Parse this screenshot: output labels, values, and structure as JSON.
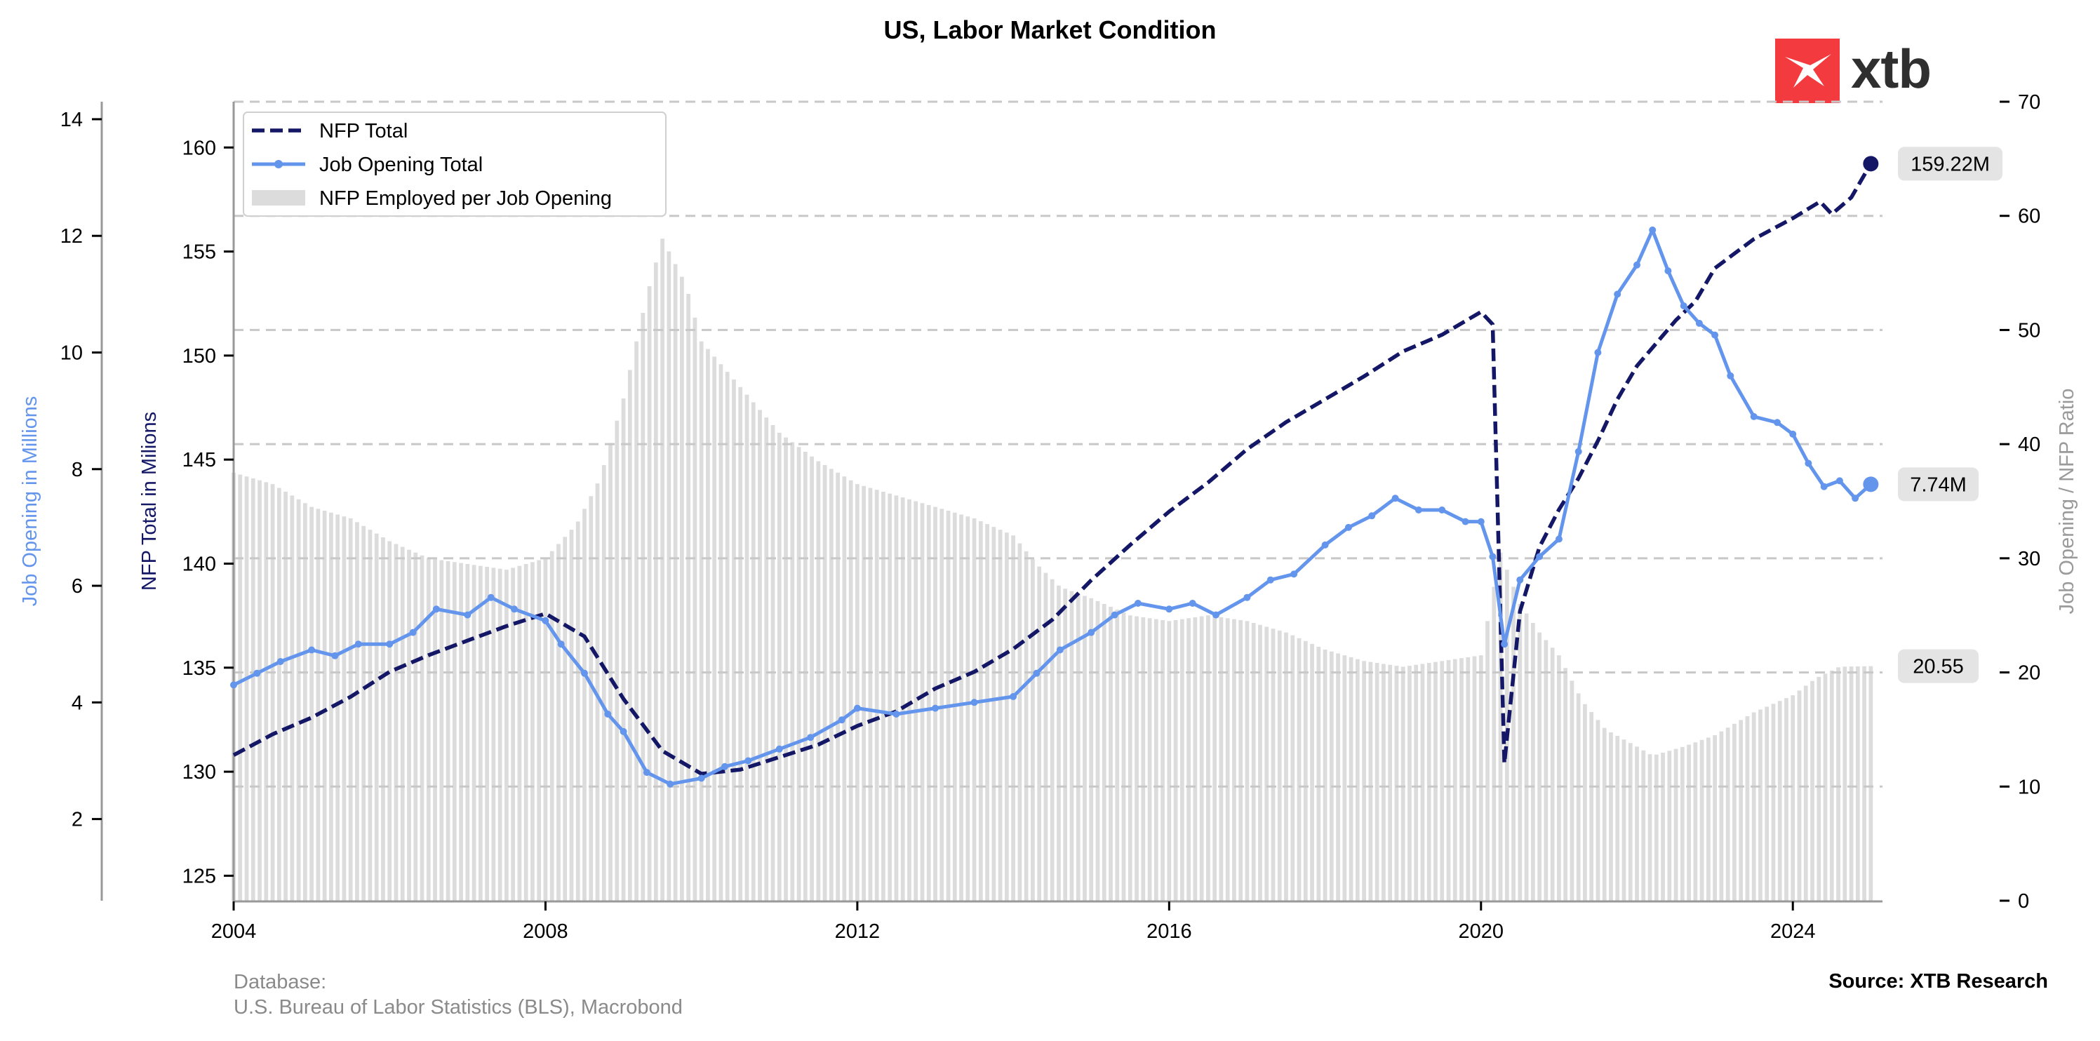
{
  "title": "US, Labor Market Condition",
  "footer": {
    "database_label": "Database:",
    "database_value": "U.S. Bureau of Labor Statistics (BLS), Macrobond",
    "source": "Source: XTB Research"
  },
  "logo": {
    "text": "xtb",
    "icon": "xtb-x-logo-icon",
    "color": "#f23a3f"
  },
  "colors": {
    "nfp": "#131766",
    "jobs": "#6495ed",
    "ratio": "#dcdcdc",
    "grid": "#c8c8c8"
  },
  "chart_data": {
    "type": "line",
    "title": "US, Labor Market Condition",
    "x_ticks": [
      "2004",
      "2008",
      "2012",
      "2016",
      "2020",
      "2024"
    ],
    "xlim": [
      2004.0,
      2025.15
    ],
    "grid": "horizontal dashed",
    "legend_position": "top-left",
    "axes": {
      "nfp": {
        "label": "NFP Total in Milions",
        "ylim": [
          123.8,
          162.2
        ],
        "ticks": [
          125,
          130,
          135,
          140,
          145,
          150,
          155,
          160
        ]
      },
      "jobs": {
        "label": "Job Opening in Millions",
        "ylim": [
          0.6,
          14.3
        ],
        "ticks": [
          2,
          4,
          6,
          8,
          10,
          12,
          14
        ]
      },
      "ratio": {
        "label": "Job Opening / NFP Ratio",
        "ylim": [
          0,
          70
        ],
        "ticks": [
          0,
          10,
          20,
          30,
          40,
          50,
          60,
          70
        ]
      }
    },
    "series": [
      {
        "name": "NFP Total",
        "axis": "nfp",
        "style": "dashed",
        "end_label": "159.22M",
        "points": [
          [
            2004.0,
            130.8
          ],
          [
            2004.5,
            131.8
          ],
          [
            2005.0,
            132.6
          ],
          [
            2005.5,
            133.6
          ],
          [
            2006.0,
            134.8
          ],
          [
            2006.5,
            135.6
          ],
          [
            2007.0,
            136.3
          ],
          [
            2007.5,
            137.0
          ],
          [
            2008.0,
            137.6
          ],
          [
            2008.5,
            136.5
          ],
          [
            2009.0,
            133.5
          ],
          [
            2009.5,
            131.0
          ],
          [
            2010.0,
            129.9
          ],
          [
            2010.5,
            130.1
          ],
          [
            2011.0,
            130.7
          ],
          [
            2011.5,
            131.3
          ],
          [
            2012.0,
            132.2
          ],
          [
            2012.5,
            132.9
          ],
          [
            2013.0,
            134.0
          ],
          [
            2013.5,
            134.8
          ],
          [
            2014.0,
            135.9
          ],
          [
            2014.5,
            137.3
          ],
          [
            2015.0,
            139.2
          ],
          [
            2015.5,
            140.9
          ],
          [
            2016.0,
            142.5
          ],
          [
            2016.5,
            143.9
          ],
          [
            2017.0,
            145.5
          ],
          [
            2017.5,
            146.8
          ],
          [
            2018.0,
            147.9
          ],
          [
            2018.5,
            149.0
          ],
          [
            2019.0,
            150.2
          ],
          [
            2019.5,
            151.0
          ],
          [
            2020.0,
            152.1
          ],
          [
            2020.15,
            151.5
          ],
          [
            2020.3,
            130.4
          ],
          [
            2020.5,
            137.7
          ],
          [
            2020.75,
            140.8
          ],
          [
            2021.0,
            142.6
          ],
          [
            2021.25,
            144.1
          ],
          [
            2021.5,
            145.9
          ],
          [
            2021.75,
            147.9
          ],
          [
            2022.0,
            149.5
          ],
          [
            2022.25,
            150.6
          ],
          [
            2022.5,
            151.7
          ],
          [
            2022.75,
            152.6
          ],
          [
            2023.0,
            154.2
          ],
          [
            2023.5,
            155.6
          ],
          [
            2024.0,
            156.6
          ],
          [
            2024.35,
            157.4
          ],
          [
            2024.5,
            156.8
          ],
          [
            2024.75,
            157.6
          ],
          [
            2025.0,
            159.22
          ]
        ]
      },
      {
        "name": "Job Opening Total",
        "axis": "jobs",
        "style": "solid-with-markers",
        "end_label": "7.74M",
        "points": [
          [
            2004.0,
            4.3
          ],
          [
            2004.3,
            4.5
          ],
          [
            2004.6,
            4.7
          ],
          [
            2005.0,
            4.9
          ],
          [
            2005.3,
            4.8
          ],
          [
            2005.6,
            5.0
          ],
          [
            2006.0,
            5.0
          ],
          [
            2006.3,
            5.2
          ],
          [
            2006.6,
            5.6
          ],
          [
            2007.0,
            5.5
          ],
          [
            2007.3,
            5.8
          ],
          [
            2007.6,
            5.6
          ],
          [
            2008.0,
            5.4
          ],
          [
            2008.2,
            5.0
          ],
          [
            2008.5,
            4.5
          ],
          [
            2008.8,
            3.8
          ],
          [
            2009.0,
            3.5
          ],
          [
            2009.3,
            2.8
          ],
          [
            2009.6,
            2.6
          ],
          [
            2010.0,
            2.7
          ],
          [
            2010.3,
            2.9
          ],
          [
            2010.6,
            3.0
          ],
          [
            2011.0,
            3.2
          ],
          [
            2011.4,
            3.4
          ],
          [
            2011.8,
            3.7
          ],
          [
            2012.0,
            3.9
          ],
          [
            2012.5,
            3.8
          ],
          [
            2013.0,
            3.9
          ],
          [
            2013.5,
            4.0
          ],
          [
            2014.0,
            4.1
          ],
          [
            2014.3,
            4.5
          ],
          [
            2014.6,
            4.9
          ],
          [
            2015.0,
            5.2
          ],
          [
            2015.3,
            5.5
          ],
          [
            2015.6,
            5.7
          ],
          [
            2016.0,
            5.6
          ],
          [
            2016.3,
            5.7
          ],
          [
            2016.6,
            5.5
          ],
          [
            2017.0,
            5.8
          ],
          [
            2017.3,
            6.1
          ],
          [
            2017.6,
            6.2
          ],
          [
            2018.0,
            6.7
          ],
          [
            2018.3,
            7.0
          ],
          [
            2018.6,
            7.2
          ],
          [
            2018.9,
            7.5
          ],
          [
            2019.2,
            7.3
          ],
          [
            2019.5,
            7.3
          ],
          [
            2019.8,
            7.1
          ],
          [
            2020.0,
            7.1
          ],
          [
            2020.15,
            6.5
          ],
          [
            2020.3,
            5.0
          ],
          [
            2020.5,
            6.1
          ],
          [
            2020.75,
            6.5
          ],
          [
            2021.0,
            6.8
          ],
          [
            2021.25,
            8.3
          ],
          [
            2021.5,
            10.0
          ],
          [
            2021.75,
            11.0
          ],
          [
            2022.0,
            11.5
          ],
          [
            2022.2,
            12.1
          ],
          [
            2022.4,
            11.4
          ],
          [
            2022.6,
            10.8
          ],
          [
            2022.8,
            10.5
          ],
          [
            2023.0,
            10.3
          ],
          [
            2023.2,
            9.6
          ],
          [
            2023.5,
            8.9
          ],
          [
            2023.8,
            8.8
          ],
          [
            2024.0,
            8.6
          ],
          [
            2024.2,
            8.1
          ],
          [
            2024.4,
            7.7
          ],
          [
            2024.6,
            7.8
          ],
          [
            2024.8,
            7.5
          ],
          [
            2025.0,
            7.74
          ]
        ]
      },
      {
        "name": "NFP Employed per Job Opening",
        "axis": "ratio",
        "style": "bars",
        "end_label": "20.55",
        "points": [
          [
            2004.0,
            37.5
          ],
          [
            2004.5,
            36.5
          ],
          [
            2005.0,
            34.5
          ],
          [
            2005.5,
            33.5
          ],
          [
            2006.0,
            31.5
          ],
          [
            2006.5,
            30.0
          ],
          [
            2007.0,
            29.5
          ],
          [
            2007.5,
            29.0
          ],
          [
            2008.0,
            30.0
          ],
          [
            2008.4,
            33.0
          ],
          [
            2008.7,
            37.0
          ],
          [
            2009.0,
            44.0
          ],
          [
            2009.3,
            53.0
          ],
          [
            2009.5,
            58.0
          ],
          [
            2009.8,
            54.0
          ],
          [
            2010.0,
            49.0
          ],
          [
            2010.5,
            45.0
          ],
          [
            2011.0,
            41.0
          ],
          [
            2011.5,
            38.5
          ],
          [
            2012.0,
            36.5
          ],
          [
            2012.5,
            35.5
          ],
          [
            2013.0,
            34.5
          ],
          [
            2013.5,
            33.5
          ],
          [
            2014.0,
            32.0
          ],
          [
            2014.3,
            29.5
          ],
          [
            2014.6,
            27.5
          ],
          [
            2015.0,
            26.5
          ],
          [
            2015.5,
            25.0
          ],
          [
            2016.0,
            24.5
          ],
          [
            2016.5,
            25.0
          ],
          [
            2017.0,
            24.5
          ],
          [
            2017.5,
            23.5
          ],
          [
            2018.0,
            22.0
          ],
          [
            2018.5,
            21.0
          ],
          [
            2019.0,
            20.5
          ],
          [
            2019.5,
            21.0
          ],
          [
            2020.0,
            21.5
          ],
          [
            2020.25,
            30.5
          ],
          [
            2020.5,
            26.0
          ],
          [
            2020.75,
            23.5
          ],
          [
            2021.0,
            21.5
          ],
          [
            2021.3,
            17.5
          ],
          [
            2021.6,
            15.0
          ],
          [
            2022.0,
            13.5
          ],
          [
            2022.2,
            12.7
          ],
          [
            2022.6,
            13.5
          ],
          [
            2023.0,
            14.5
          ],
          [
            2023.5,
            16.5
          ],
          [
            2024.0,
            18.0
          ],
          [
            2024.3,
            19.5
          ],
          [
            2024.6,
            20.5
          ],
          [
            2025.0,
            20.55
          ]
        ]
      }
    ]
  }
}
